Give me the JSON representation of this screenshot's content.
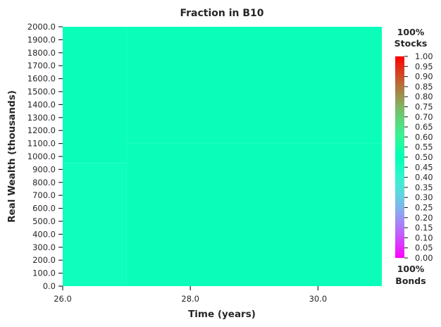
{
  "chart_data": {
    "type": "heatmap",
    "title": "Fraction in B10",
    "xlabel": "Time (years)",
    "ylabel": "Real Wealth (thousands)",
    "x_range": [
      26.0,
      31.0
    ],
    "y_range": [
      0.0,
      2000.0
    ],
    "x_tick_labels": [
      "26.0",
      "28.0",
      "30.0"
    ],
    "y_tick_labels": [
      "0.0",
      "100.0",
      "200.0",
      "300.0",
      "400.0",
      "500.0",
      "600.0",
      "700.0",
      "800.0",
      "900.0",
      "1000.0",
      "1100.0",
      "1200.0",
      "1300.0",
      "1400.0",
      "1500.0",
      "1600.0",
      "1700.0",
      "1800.0",
      "1900.0",
      "2000.0"
    ],
    "cells": [
      {
        "x": [
          26.0,
          27.0
        ],
        "y": [
          0.0,
          950.0
        ],
        "value": 0.47
      },
      {
        "x": [
          26.0,
          27.0
        ],
        "y": [
          950.0,
          2000.0
        ],
        "value": 0.48
      },
      {
        "x": [
          27.0,
          31.0
        ],
        "y": [
          0.0,
          1100.0
        ],
        "value": 0.48
      },
      {
        "x": [
          27.0,
          31.0
        ],
        "y": [
          1100.0,
          2000.0
        ],
        "value": 0.48
      }
    ],
    "colorbar": {
      "colormap": "rainbow",
      "range": [
        0.0,
        1.0
      ],
      "tick_labels": [
        "0.00",
        "0.05",
        "0.10",
        "0.15",
        "0.20",
        "0.25",
        "0.30",
        "0.35",
        "0.40",
        "0.45",
        "0.50",
        "0.55",
        "0.60",
        "0.65",
        "0.70",
        "0.75",
        "0.80",
        "0.85",
        "0.90",
        "0.95",
        "1.00"
      ],
      "top_label": [
        "100%",
        "Stocks"
      ],
      "bottom_label": [
        "100%",
        "Bonds"
      ]
    },
    "grid": false
  }
}
